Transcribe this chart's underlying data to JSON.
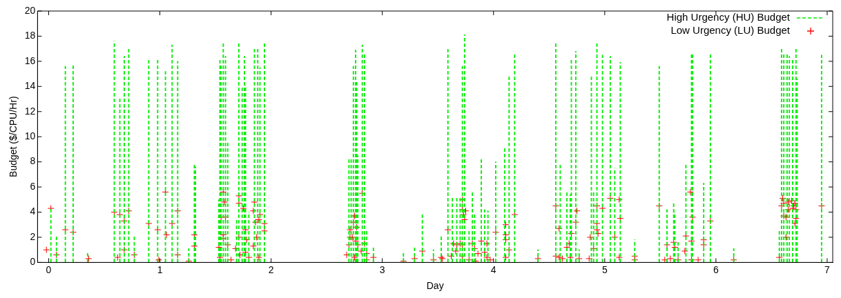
{
  "chart_data": {
    "type": "bar",
    "xlabel": "Day",
    "ylabel": "Budget ($/CPU/Hr)",
    "xlim": [
      -0.1,
      7.05
    ],
    "xticks": [
      0,
      1,
      2,
      3,
      4,
      5,
      6,
      7
    ],
    "ylim": [
      0,
      20
    ],
    "yticks": [
      0,
      2,
      4,
      6,
      8,
      10,
      12,
      14,
      16,
      18,
      20
    ],
    "grid": false,
    "legend": "top right",
    "marker": "cross",
    "series": [
      {
        "name": "High Urgency (HU) Budget",
        "line_style": "dashed",
        "color": "#00ee00",
        "x": [
          0.02,
          0.07,
          0.15,
          0.22,
          0.35,
          0.59,
          0.64,
          0.68,
          0.72,
          0.77,
          0.9,
          0.98,
          1.05,
          1.11,
          1.16,
          1.26,
          1.31,
          1.32,
          1.53,
          1.54,
          1.55,
          1.57,
          1.59,
          1.61,
          1.69,
          1.71,
          1.74,
          1.76,
          1.77,
          1.8,
          1.85,
          1.88,
          1.9,
          1.94,
          2.7,
          2.72,
          2.74,
          2.76,
          2.77,
          2.78,
          2.82,
          2.84,
          2.86,
          2.92,
          3.19,
          3.29,
          3.36,
          3.46,
          3.53,
          3.59,
          3.63,
          3.67,
          3.7,
          3.72,
          3.74,
          3.78,
          3.81,
          3.83,
          3.89,
          3.92,
          3.95,
          4.02,
          4.1,
          4.14,
          4.19,
          4.4,
          4.56,
          4.6,
          4.66,
          4.69,
          4.7,
          4.74,
          4.77,
          4.88,
          4.9,
          4.93,
          4.98,
          5.05,
          5.09,
          5.14,
          5.27,
          5.49,
          5.56,
          5.62,
          5.63,
          5.66,
          5.73,
          5.78,
          5.79,
          5.89,
          5.95,
          6.16,
          6.57,
          6.59,
          6.61,
          6.64,
          6.66,
          6.69,
          6.72,
          6.73,
          6.95
        ],
        "values": [
          4.3,
          2.2,
          15.6,
          15.8,
          0.8,
          17.6,
          13.1,
          16.4,
          17.1,
          2.1,
          16.1,
          16.1,
          15.2,
          17.3,
          16.0,
          1.1,
          7.9,
          7.6,
          5.0,
          16.1,
          15.8,
          17.5,
          16.4,
          9.5,
          3.5,
          17.4,
          14.0,
          16.4,
          14.1,
          4.0,
          17.1,
          17.0,
          15.5,
          17.5,
          8.2,
          8.2,
          15.6,
          16.9,
          14.5,
          8.5,
          17.3,
          16.6,
          2.6,
          1.3,
          0.8,
          1.3,
          3.8,
          1.0,
          2.1,
          17.1,
          5.2,
          5.2,
          5.1,
          15.6,
          18.1,
          2.6,
          5.6,
          3.8,
          8.2,
          4.2,
          4.1,
          8.0,
          9.2,
          14.9,
          16.6,
          1.0,
          17.4,
          7.9,
          5.6,
          5.4,
          16.1,
          16.8,
          1.0,
          14.9,
          5.6,
          17.5,
          16.5,
          16.4,
          7.5,
          15.9,
          1.8,
          15.6,
          4.2,
          4.8,
          4.0,
          1.7,
          7.8,
          16.6,
          16.6,
          6.3,
          16.6,
          1.1,
          2.6,
          17.1,
          16.6,
          16.6,
          16.4,
          16.2,
          17.0,
          14.6,
          16.5
        ]
      },
      {
        "name": "Low Urgency (LU) Budget",
        "type": "scatter",
        "color": "#ff0000",
        "x": [
          -0.02,
          0.02,
          0.07,
          0.15,
          0.22,
          0.36,
          0.59,
          0.62,
          0.64,
          0.68,
          0.68,
          0.72,
          0.77,
          0.9,
          0.98,
          0.99,
          1.05,
          1.06,
          1.11,
          1.16,
          1.16,
          1.26,
          1.31,
          1.31,
          1.53,
          1.54,
          1.55,
          1.57,
          1.57,
          1.57,
          1.58,
          1.59,
          1.61,
          1.64,
          1.68,
          1.71,
          1.71,
          1.71,
          1.72,
          1.75,
          1.77,
          1.78,
          1.77,
          1.8,
          1.84,
          1.84,
          1.85,
          1.86,
          1.87,
          1.89,
          1.9,
          1.89,
          1.94,
          1.94,
          2.68,
          2.7,
          2.71,
          2.71,
          2.73,
          2.74,
          2.75,
          2.76,
          2.77,
          2.75,
          2.78,
          2.81,
          2.82,
          2.84,
          2.86,
          2.86,
          2.92,
          3.19,
          3.29,
          3.36,
          3.46,
          3.53,
          3.54,
          3.59,
          3.62,
          3.64,
          3.66,
          3.67,
          3.7,
          3.72,
          3.72,
          3.72,
          3.73,
          3.74,
          3.75,
          3.72,
          3.78,
          3.81,
          3.83,
          3.84,
          3.86,
          3.89,
          3.92,
          3.94,
          3.94,
          3.97,
          4.02,
          4.11,
          4.11,
          4.11,
          4.11,
          4.14,
          4.19,
          4.4,
          4.56,
          4.56,
          4.59,
          4.59,
          4.62,
          4.66,
          4.68,
          4.7,
          4.69,
          4.74,
          4.75,
          4.77,
          4.86,
          4.87,
          4.9,
          4.93,
          4.93,
          4.93,
          4.94,
          4.98,
          5.05,
          5.09,
          5.13,
          5.14,
          5.13,
          5.27,
          5.27,
          5.49,
          5.54,
          5.56,
          5.59,
          5.62,
          5.63,
          5.66,
          5.72,
          5.73,
          5.77,
          5.79,
          5.78,
          5.78,
          5.84,
          5.89,
          5.89,
          5.95,
          6.16,
          6.57,
          6.59,
          6.6,
          6.61,
          6.61,
          6.63,
          6.63,
          6.65,
          6.65,
          6.68,
          6.69,
          6.7,
          6.71,
          6.72,
          6.72,
          6.71,
          6.95
        ],
        "values": [
          1.0,
          4.3,
          0.6,
          2.6,
          2.4,
          0.3,
          4.0,
          0.4,
          3.8,
          1.0,
          3.3,
          4.1,
          0.6,
          3.1,
          2.6,
          0.2,
          5.6,
          2.2,
          3.1,
          4.1,
          0.6,
          0.1,
          2.2,
          1.3,
          1.2,
          0.4,
          3.6,
          5.6,
          2.2,
          1.9,
          4.8,
          3.6,
          1.4,
          0.2,
          1.1,
          4.7,
          5.3,
          2.0,
          0.6,
          4.3,
          2.6,
          1.8,
          0.8,
          0.4,
          1.3,
          4.1,
          4.8,
          3.2,
          2.0,
          3.4,
          3.8,
          0.4,
          3.1,
          2.5,
          0.6,
          1.4,
          2.6,
          2.0,
          2.0,
          3.2,
          3.7,
          1.7,
          2.8,
          0.4,
          1.4,
          0.9,
          5.5,
          1.5,
          0.7,
          0.2,
          0.4,
          0.1,
          0.3,
          0.9,
          0.2,
          0.4,
          0.3,
          2.6,
          0.5,
          1.5,
          0.9,
          1.4,
          1.5,
          1.4,
          5.0,
          4.2,
          3.8,
          3.4,
          4.1,
          0.5,
          0.2,
          1.5,
          1.1,
          0.1,
          0.7,
          1.7,
          0.8,
          1.5,
          0.4,
          0.2,
          2.4,
          3.0,
          2.2,
          1.8,
          0.4,
          1.0,
          3.8,
          0.3,
          4.5,
          0.5,
          2.7,
          0.4,
          0.3,
          1.2,
          1.5,
          2.3,
          0.4,
          3.2,
          4.1,
          0.3,
          0.3,
          2.0,
          1.1,
          4.5,
          3.1,
          2.6,
          2.3,
          4.3,
          5.1,
          2.0,
          5.0,
          3.5,
          0.4,
          0.5,
          0.2,
          4.5,
          0.2,
          1.4,
          0.3,
          1.6,
          1.2,
          0.2,
          0.9,
          2.1,
          5.6,
          3.6,
          1.7,
          0.2,
          0.2,
          1.8,
          1.4,
          3.3,
          0.2,
          0.4,
          4.5,
          5.1,
          4.7,
          3.7,
          3.6,
          2.0,
          4.8,
          4.2,
          4.9,
          4.3,
          4.5,
          4.7,
          4.2,
          3.5,
          3.1,
          4.5
        ]
      }
    ]
  }
}
